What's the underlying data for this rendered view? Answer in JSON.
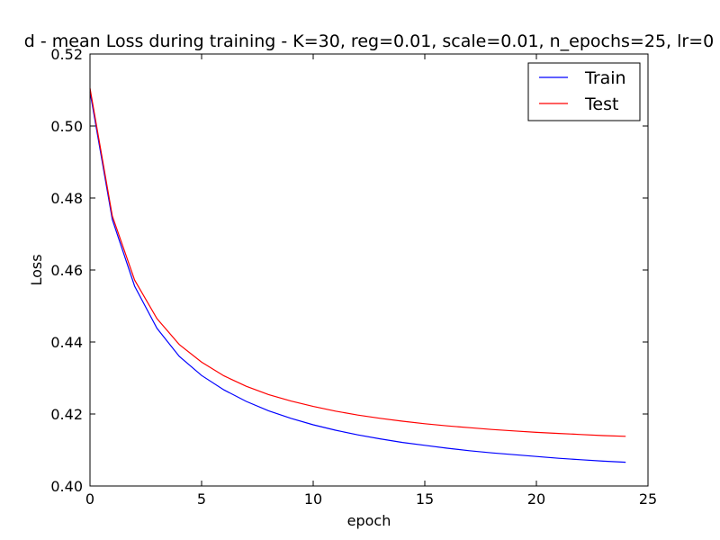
{
  "chart_data": {
    "type": "line",
    "title": "d - mean Loss during training - K=30, reg=0.01, scale=0.01, n_epochs=25, lr=0",
    "xlabel": "epoch",
    "ylabel": "Loss",
    "xlim": [
      0,
      25
    ],
    "ylim": [
      0.4,
      0.52
    ],
    "x_ticks": [
      "0",
      "5",
      "10",
      "15",
      "20",
      "25"
    ],
    "y_ticks": [
      "0.40",
      "0.42",
      "0.44",
      "0.46",
      "0.48",
      "0.50",
      "0.52"
    ],
    "legend_position": "top-right",
    "grid": false,
    "x": [
      0,
      1,
      2,
      3,
      4,
      5,
      6,
      7,
      8,
      9,
      10,
      11,
      12,
      13,
      14,
      15,
      16,
      17,
      18,
      19,
      20,
      21,
      22,
      23,
      24
    ],
    "series": [
      {
        "name": "Train",
        "color": "#0000ff",
        "values": [
          0.5095,
          0.474,
          0.4555,
          0.4438,
          0.436,
          0.4307,
          0.4267,
          0.4235,
          0.4209,
          0.4188,
          0.417,
          0.4155,
          0.4142,
          0.4131,
          0.4121,
          0.4113,
          0.4105,
          0.4098,
          0.4092,
          0.4087,
          0.4082,
          0.4077,
          0.4073,
          0.4069,
          0.4066
        ]
      },
      {
        "name": "Test",
        "color": "#ff0000",
        "values": [
          0.5105,
          0.475,
          0.4572,
          0.4465,
          0.4393,
          0.4344,
          0.4306,
          0.4277,
          0.4254,
          0.4236,
          0.4221,
          0.4208,
          0.4197,
          0.4188,
          0.418,
          0.4173,
          0.4167,
          0.4162,
          0.4157,
          0.4153,
          0.4149,
          0.4146,
          0.4143,
          0.414,
          0.4138
        ]
      }
    ]
  }
}
